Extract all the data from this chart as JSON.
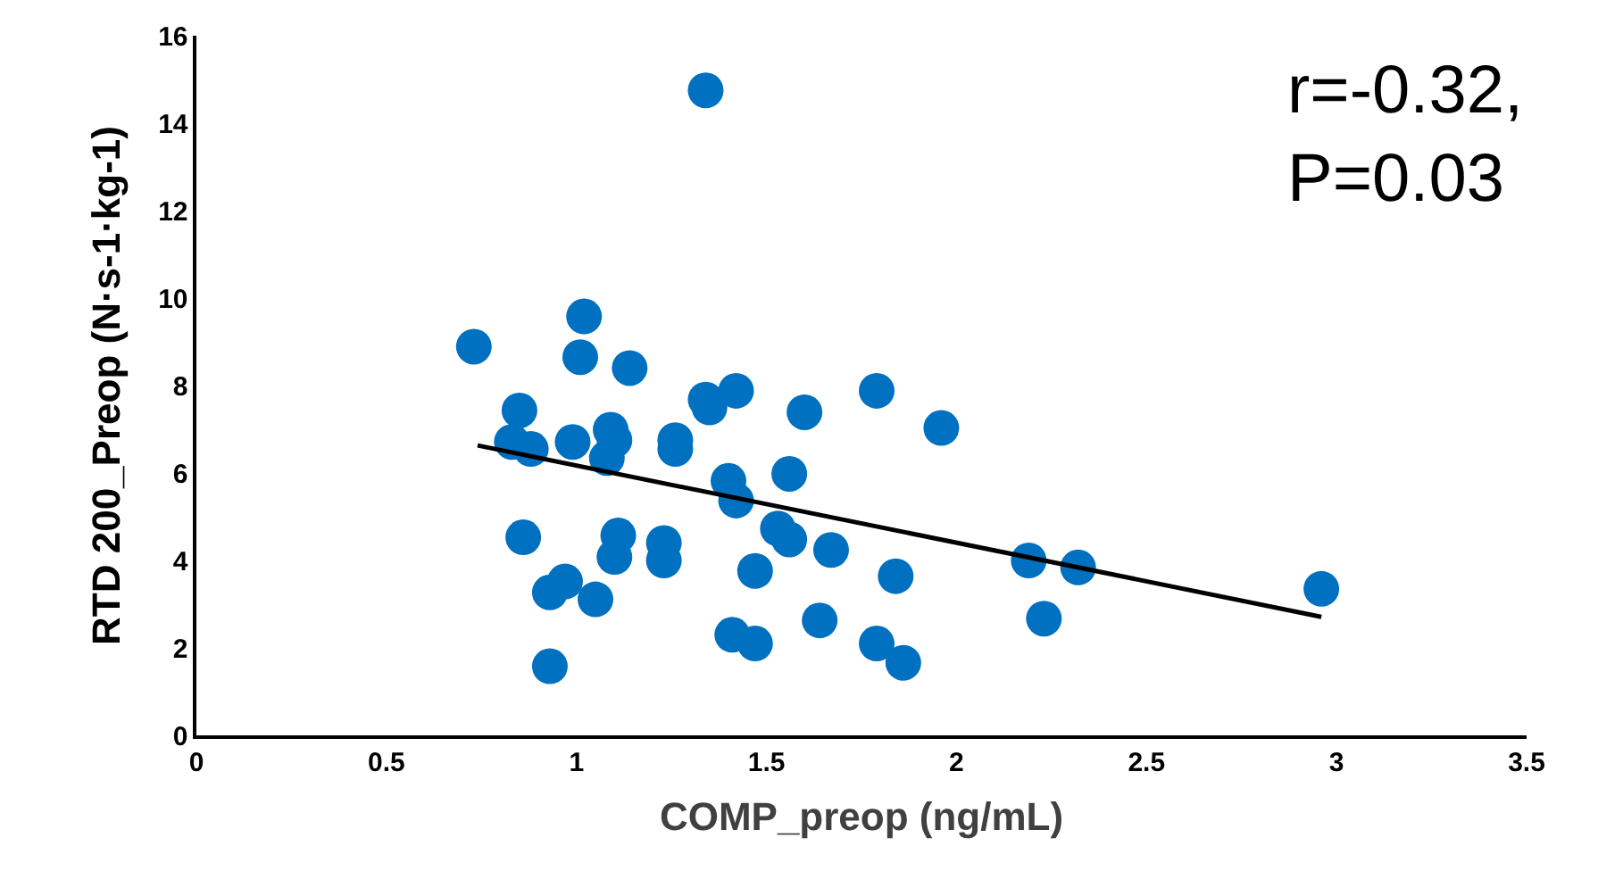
{
  "chart_data": {
    "type": "scatter",
    "xlabel": "COMP_preop (ng/mL)",
    "ylabel": "RTD 200_Preop (N·s-1·kg-1)",
    "annotations": [
      "r=-0.32,\nP=0.03"
    ],
    "xlim": [
      0,
      3.5
    ],
    "xticks": [
      0,
      0.5,
      1,
      1.5,
      2,
      2.5,
      3,
      3.5
    ],
    "ylim": [
      0,
      16
    ],
    "yticks": [
      0,
      2,
      4,
      6,
      8,
      10,
      12,
      14,
      16
    ],
    "marker": "circle",
    "series": [
      {
        "color": "#0070c0",
        "x": [
          0.73,
          1.34,
          1.02,
          1.01,
          1.14,
          0.85,
          1.34,
          1.35,
          1.42,
          1.79,
          1.96,
          1.6,
          0.83,
          0.88,
          0.99,
          1.09,
          1.1,
          1.08,
          1.26,
          1.26,
          1.4,
          1.42,
          1.56,
          0.86,
          1.11,
          1.1,
          1.23,
          1.23,
          1.53,
          1.56,
          1.67,
          1.47,
          1.84,
          2.19,
          2.32,
          2.96,
          2.23,
          0.93,
          0.97,
          1.05,
          1.41,
          1.47,
          1.64,
          1.79,
          1.86,
          0.93
        ],
        "values": [
          8.89,
          14.75,
          9.58,
          8.65,
          8.4,
          7.43,
          7.68,
          7.5,
          7.88,
          7.88,
          7.03,
          7.39,
          6.71,
          6.55,
          6.71,
          6.99,
          6.75,
          6.34,
          6.75,
          6.55,
          5.82,
          5.37,
          5.98,
          4.53,
          4.57,
          4.08,
          4.4,
          4.0,
          4.73,
          4.48,
          4.24,
          3.76,
          3.64,
          4.0,
          3.84,
          3.35,
          2.67,
          3.27,
          3.52,
          3.11,
          2.3,
          2.1,
          2.63,
          2.1,
          1.66,
          1.58
        ]
      },
      {
        "type": "line",
        "color": "#000000",
        "x": [
          0.74,
          2.96
        ],
        "values": [
          6.63,
          2.71
        ],
        "marker": "none",
        "line_style": "solid"
      }
    ]
  }
}
